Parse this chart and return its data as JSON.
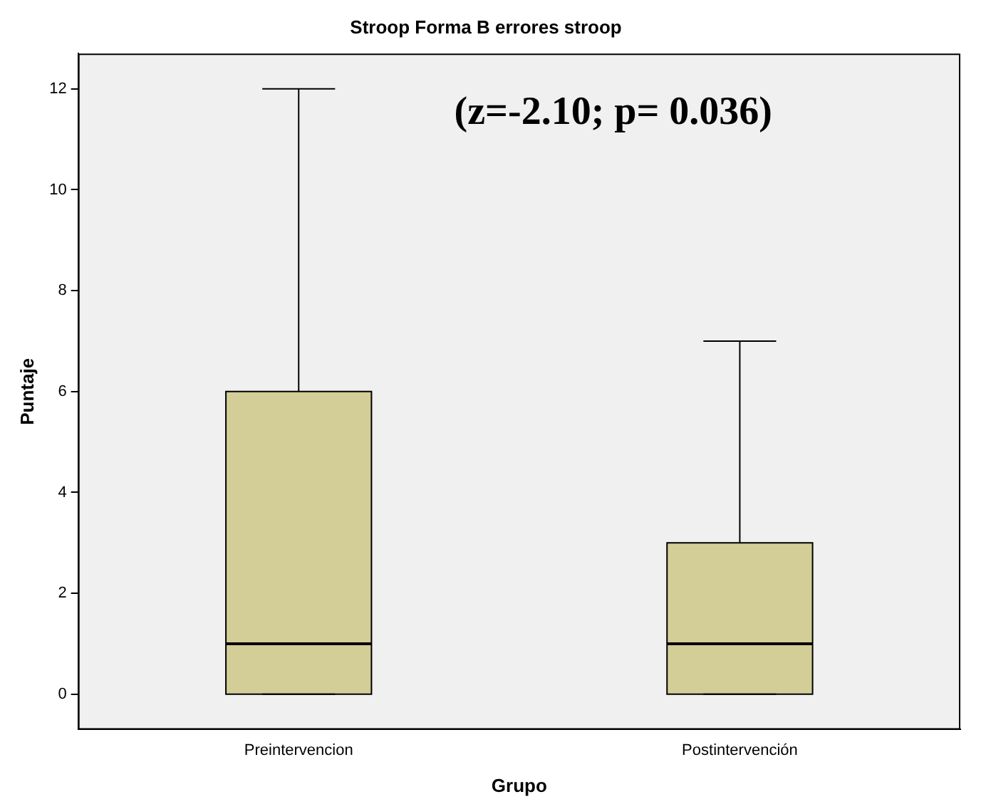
{
  "chart_data": {
    "type": "box",
    "title": "Stroop Forma B errores stroop",
    "xlabel": "Grupo",
    "ylabel": "Puntaje",
    "categories": [
      "Preintervencion",
      "Postintervención"
    ],
    "boxes": [
      {
        "low": 0,
        "q1": 0,
        "median": 1,
        "q3": 6,
        "high": 12
      },
      {
        "low": 0,
        "q1": 0,
        "median": 1,
        "q3": 3,
        "high": 7
      }
    ],
    "color": "#d3ce97",
    "ylim": [
      -0.7,
      12.7
    ],
    "yticks": [
      0,
      2,
      4,
      6,
      8,
      10,
      12
    ],
    "grid": false,
    "legend": false,
    "annotations": [
      "(z=-2.10; p= 0.036)"
    ]
  }
}
